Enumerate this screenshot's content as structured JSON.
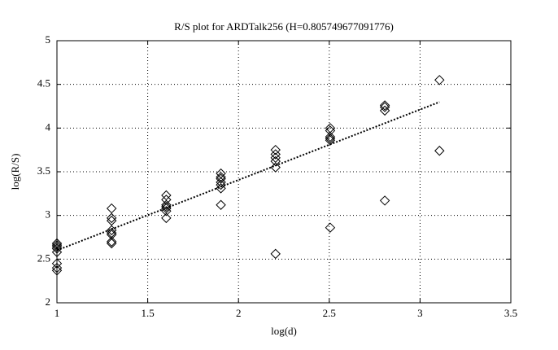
{
  "chart_data": {
    "type": "scatter",
    "title": "R/S plot for ARDTalk256 (H=0.805749677091776)",
    "xlabel": "log(d)",
    "ylabel": "log(R/S)",
    "xlim": [
      1,
      3.5
    ],
    "xticks": [
      1,
      1.5,
      2,
      2.5,
      3,
      3.5
    ],
    "ylim": [
      2,
      5
    ],
    "yticks": [
      2,
      2.5,
      3,
      3.5,
      4,
      4.5,
      5
    ],
    "grid": true,
    "series": [
      {
        "type": "scatter",
        "color": "#000000",
        "x": [
          1,
          1,
          1,
          1,
          1,
          1,
          1,
          1,
          1.301,
          1.301,
          1.301,
          1.301,
          1.301,
          1.301,
          1.301,
          1.301,
          1.602,
          1.602,
          1.602,
          1.602,
          1.602,
          1.602,
          1.602,
          1.903,
          1.903,
          1.903,
          1.903,
          1.903,
          1.903,
          1.903,
          2.204,
          2.204,
          2.204,
          2.204,
          2.204,
          2.204,
          2.505,
          2.505,
          2.505,
          2.505,
          2.505,
          2.505,
          2.806,
          2.806,
          2.806,
          2.806,
          3.107,
          3.107
        ],
        "values": [
          2.68,
          2.66,
          2.64,
          2.62,
          2.58,
          2.45,
          2.4,
          2.37,
          3.08,
          2.97,
          2.94,
          2.83,
          2.8,
          2.78,
          2.7,
          2.68,
          3.23,
          3.18,
          3.12,
          3.1,
          3.08,
          3.05,
          2.97,
          3.48,
          3.44,
          3.42,
          3.38,
          3.35,
          3.31,
          3.12,
          3.75,
          3.7,
          3.66,
          3.62,
          3.55,
          2.56,
          4.0,
          3.97,
          3.9,
          3.88,
          3.86,
          2.86,
          4.26,
          4.24,
          4.2,
          3.17,
          4.55,
          3.74
        ]
      },
      {
        "type": "line",
        "color": "#000000",
        "style": "dotted",
        "x": [
          1,
          3.107
        ],
        "values": [
          2.6,
          4.298
        ]
      }
    ]
  }
}
